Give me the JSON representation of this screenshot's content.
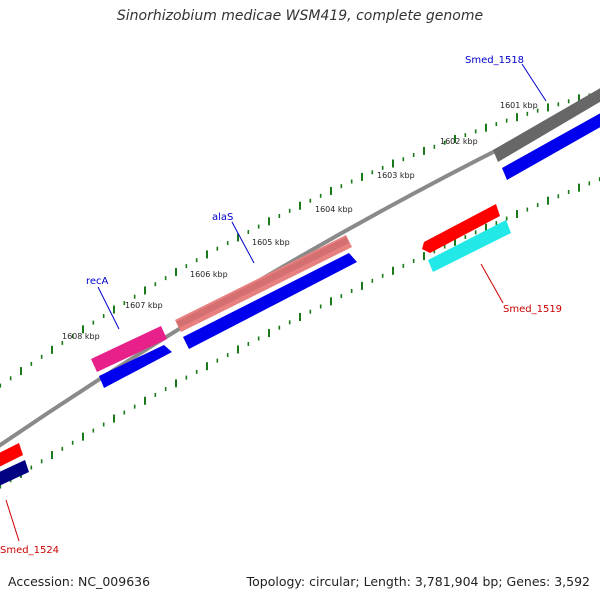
{
  "title": "Sinorhizobium medicae WSM419, complete genome",
  "footer": {
    "accession": "Accession: NC_009636",
    "summary": "Topology: circular; Length: 3,781,904 bp; Genes: 3,592"
  },
  "ruler": {
    "unit": "kbp",
    "ticks": [
      1601,
      1602,
      1603,
      1604,
      1605,
      1606,
      1607,
      1608
    ]
  },
  "genes": [
    {
      "label": "Smed_1518",
      "label_color": "#0000cc",
      "track": "outer",
      "color": "#666666",
      "strand": "+"
    },
    {
      "label": "Smed_1519",
      "label_color": "#cc0000",
      "track": "inner",
      "color": "#ff0000",
      "strand": "-"
    },
    {
      "label": "alaS",
      "label_color": "#0000cc",
      "track": "outer",
      "color": "#e88080",
      "strand": "+"
    },
    {
      "label": "recA",
      "label_color": "#0000cc",
      "track": "outer",
      "color": "#e8208a",
      "strand": "+"
    },
    {
      "label": "Smed_1524",
      "label_color": "#cc0000",
      "track": "inner",
      "color": "#ff0000",
      "strand": "-"
    }
  ],
  "colors": {
    "backbone": "#808080",
    "cds_bar": "#0000ee",
    "rrna_cyan": "#22e8e8",
    "navy": "#000080",
    "tick_green": "#1a7a1a"
  }
}
